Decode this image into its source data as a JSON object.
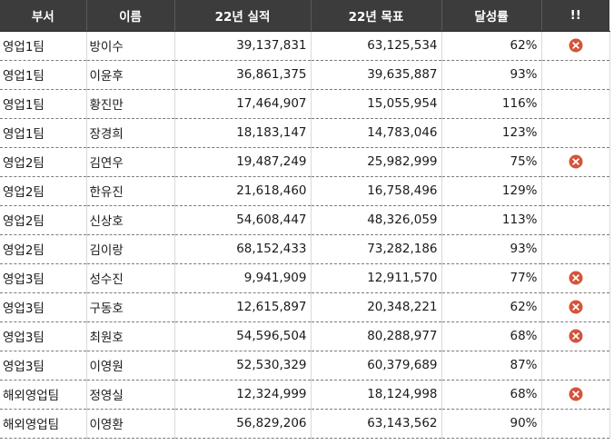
{
  "table": {
    "headers": [
      "부서",
      "이름",
      "22년 실적",
      "22년 목표",
      "달성률",
      "!!"
    ],
    "rows": [
      {
        "dept": "영업1팀",
        "name": "방이수",
        "actual": "39,137,831",
        "target": "63,125,534",
        "rate": "62%",
        "flag": "x-circle-icon"
      },
      {
        "dept": "영업1팀",
        "name": "이윤후",
        "actual": "36,861,375",
        "target": "39,635,887",
        "rate": "93%",
        "flag": ""
      },
      {
        "dept": "영업1팀",
        "name": "황진만",
        "actual": "17,464,907",
        "target": "15,055,954",
        "rate": "116%",
        "flag": ""
      },
      {
        "dept": "영업1팀",
        "name": "장경희",
        "actual": "18,183,147",
        "target": "14,783,046",
        "rate": "123%",
        "flag": ""
      },
      {
        "dept": "영업2팀",
        "name": "김연우",
        "actual": "19,487,249",
        "target": "25,982,999",
        "rate": "75%",
        "flag": "x-circle-icon"
      },
      {
        "dept": "영업2팀",
        "name": "한유진",
        "actual": "21,618,460",
        "target": "16,758,496",
        "rate": "129%",
        "flag": ""
      },
      {
        "dept": "영업2팀",
        "name": "신상호",
        "actual": "54,608,447",
        "target": "48,326,059",
        "rate": "113%",
        "flag": ""
      },
      {
        "dept": "영업2팀",
        "name": "김이랑",
        "actual": "68,152,433",
        "target": "73,282,186",
        "rate": "93%",
        "flag": ""
      },
      {
        "dept": "영업3팀",
        "name": "성수진",
        "actual": "9,941,909",
        "target": "12,911,570",
        "rate": "77%",
        "flag": "x-circle-icon"
      },
      {
        "dept": "영업3팀",
        "name": "구동호",
        "actual": "12,615,897",
        "target": "20,348,221",
        "rate": "62%",
        "flag": "x-circle-icon"
      },
      {
        "dept": "영업3팀",
        "name": "최원호",
        "actual": "54,596,504",
        "target": "80,288,977",
        "rate": "68%",
        "flag": "x-circle-icon"
      },
      {
        "dept": "영업3팀",
        "name": "이영원",
        "actual": "52,530,329",
        "target": "60,379,689",
        "rate": "87%",
        "flag": ""
      },
      {
        "dept": "해외영업팀",
        "name": "정영실",
        "actual": "12,324,999",
        "target": "18,124,998",
        "rate": "68%",
        "flag": "x-circle-icon"
      },
      {
        "dept": "해외영업팀",
        "name": "이영환",
        "actual": "56,829,206",
        "target": "63,143,562",
        "rate": "90%",
        "flag": ""
      }
    ]
  },
  "colors": {
    "header_bg": "#3c3c3c",
    "header_text": "#ffffff",
    "icon_fill": "#d4543a"
  }
}
